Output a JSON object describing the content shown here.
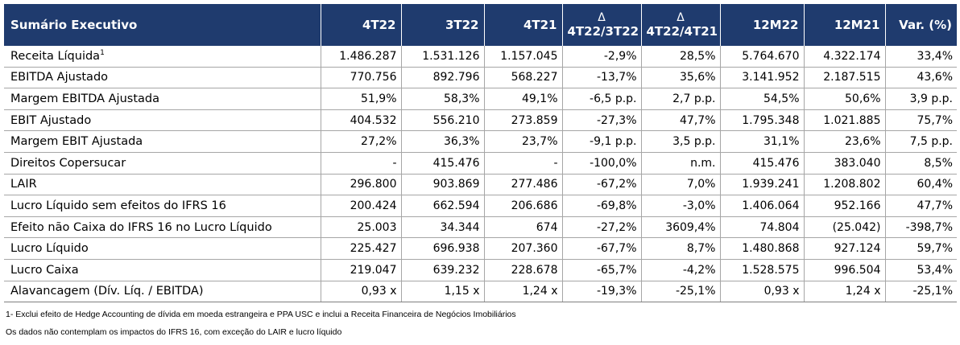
{
  "table": {
    "headers": [
      {
        "label": "Sumário Executivo"
      },
      {
        "label": "4T22"
      },
      {
        "label": "3T22"
      },
      {
        "label": "4T21"
      },
      {
        "delta": "Δ",
        "label": "4T22/3T22"
      },
      {
        "delta": "Δ",
        "label": "4T22/4T21"
      },
      {
        "label": "12M22"
      },
      {
        "label": "12M21"
      },
      {
        "label": "Var. (%)"
      }
    ],
    "rows": [
      {
        "label": "Receita Líquida",
        "sup": "1",
        "cells": [
          "1.486.287",
          "1.531.126",
          "1.157.045",
          "-2,9%",
          "28,5%",
          "5.764.670",
          "4.322.174",
          "33,4%"
        ]
      },
      {
        "label": "EBITDA Ajustado",
        "cells": [
          "770.756",
          "892.796",
          "568.227",
          "-13,7%",
          "35,6%",
          "3.141.952",
          "2.187.515",
          "43,6%"
        ]
      },
      {
        "label": "Margem EBITDA Ajustada",
        "cells": [
          "51,9%",
          "58,3%",
          "49,1%",
          "-6,5 p.p.",
          "2,7 p.p.",
          "54,5%",
          "50,6%",
          "3,9 p.p."
        ]
      },
      {
        "label": "EBIT Ajustado",
        "cells": [
          "404.532",
          "556.210",
          "273.859",
          "-27,3%",
          "47,7%",
          "1.795.348",
          "1.021.885",
          "75,7%"
        ]
      },
      {
        "label": "Margem EBIT Ajustada",
        "cells": [
          "27,2%",
          "36,3%",
          "23,7%",
          "-9,1 p.p.",
          "3,5 p.p.",
          "31,1%",
          "23,6%",
          "7,5 p.p."
        ]
      },
      {
        "label": "Direitos Copersucar",
        "cells": [
          "-",
          "415.476",
          "-",
          "-100,0%",
          "n.m.",
          "415.476",
          "383.040",
          "8,5%"
        ]
      },
      {
        "label": "LAIR",
        "cells": [
          "296.800",
          "903.869",
          "277.486",
          "-67,2%",
          "7,0%",
          "1.939.241",
          "1.208.802",
          "60,4%"
        ]
      },
      {
        "label": "Lucro Líquido sem efeitos do IFRS 16",
        "cells": [
          "200.424",
          "662.594",
          "206.686",
          "-69,8%",
          "-3,0%",
          "1.406.064",
          "952.166",
          "47,7%"
        ]
      },
      {
        "label": "Efeito não Caixa do IFRS 16 no Lucro Líquido",
        "cells": [
          "25.003",
          "34.344",
          "674",
          "-27,2%",
          "3609,4%",
          "74.804",
          "(25.042)",
          "-398,7%"
        ]
      },
      {
        "label": "Lucro Líquido",
        "cells": [
          "225.427",
          "696.938",
          "207.360",
          "-67,7%",
          "8,7%",
          "1.480.868",
          "927.124",
          "59,7%"
        ]
      },
      {
        "label": "Lucro Caixa",
        "cells": [
          "219.047",
          "639.232",
          "228.678",
          "-65,7%",
          "-4,2%",
          "1.528.575",
          "996.504",
          "53,4%"
        ]
      },
      {
        "label": "Alavancagem (Dív. Líq. / EBITDA)",
        "cells": [
          "0,93 x",
          "1,15 x",
          "1,24 x",
          "-19,3%",
          "-25,1%",
          "0,93 x",
          "1,24 x",
          "-25,1%"
        ]
      }
    ]
  },
  "notes": [
    "1- Exclui efeito de Hedge Accounting de dívida em moeda estrangeira e PPA USC e inclui a Receita Financeira de Negócios Imobiliários",
    "Os dados não contemplam os impactos do IFRS 16, com exceção do LAIR e lucro líquido"
  ],
  "colors": {
    "header_bg": "#1f3b6e",
    "header_text": "#ffffff",
    "grid": "#a6a6a6"
  }
}
